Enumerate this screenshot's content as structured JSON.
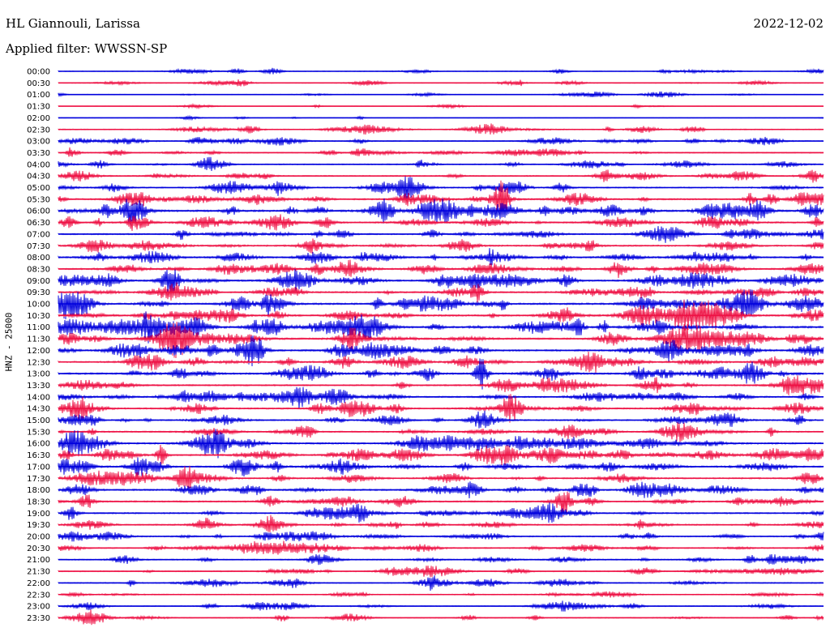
{
  "header": {
    "station": "HL Giannouli, Larissa",
    "date": "2022-12-02",
    "filter": "Applied filter: WWSSN-SP"
  },
  "channel_label": "HNZ - 25000",
  "colors": {
    "even_trace": "#0000dd",
    "odd_trace": "#ee1144"
  },
  "chart_data": {
    "type": "line",
    "title": "HL Giannouli, Larissa",
    "subtitle": "Applied filter: WWSSN-SP",
    "ylabel": "HNZ - 25000",
    "xlabel": "",
    "grid": false,
    "legend": "none",
    "row_labels": [
      "00:00",
      "00:30",
      "01:00",
      "01:30",
      "02:00",
      "02:30",
      "03:00",
      "03:30",
      "04:00",
      "04:30",
      "05:00",
      "05:30",
      "06:00",
      "06:30",
      "07:00",
      "07:30",
      "08:00",
      "08:30",
      "09:00",
      "09:30",
      "10:00",
      "10:30",
      "11:00",
      "11:30",
      "12:00",
      "12:30",
      "13:00",
      "13:30",
      "14:00",
      "14:30",
      "15:00",
      "15:30",
      "16:00",
      "16:30",
      "17:00",
      "17:30",
      "18:00",
      "18:30",
      "19:00",
      "19:30",
      "20:00",
      "20:30",
      "21:00",
      "21:30",
      "22:00",
      "22:30",
      "23:00",
      "23:30"
    ],
    "activity_level": [
      0.2,
      0.2,
      0.15,
      0.05,
      0.05,
      0.35,
      0.35,
      0.4,
      0.4,
      0.45,
      0.55,
      0.7,
      0.95,
      0.7,
      0.6,
      0.65,
      0.7,
      0.7,
      0.75,
      0.7,
      0.9,
      0.85,
      0.95,
      0.85,
      0.8,
      0.75,
      0.8,
      0.65,
      0.65,
      0.65,
      0.6,
      0.6,
      0.75,
      0.75,
      0.7,
      0.65,
      0.7,
      0.65,
      0.6,
      0.55,
      0.5,
      0.45,
      0.45,
      0.4,
      0.4,
      0.35,
      0.3,
      0.3
    ]
  }
}
